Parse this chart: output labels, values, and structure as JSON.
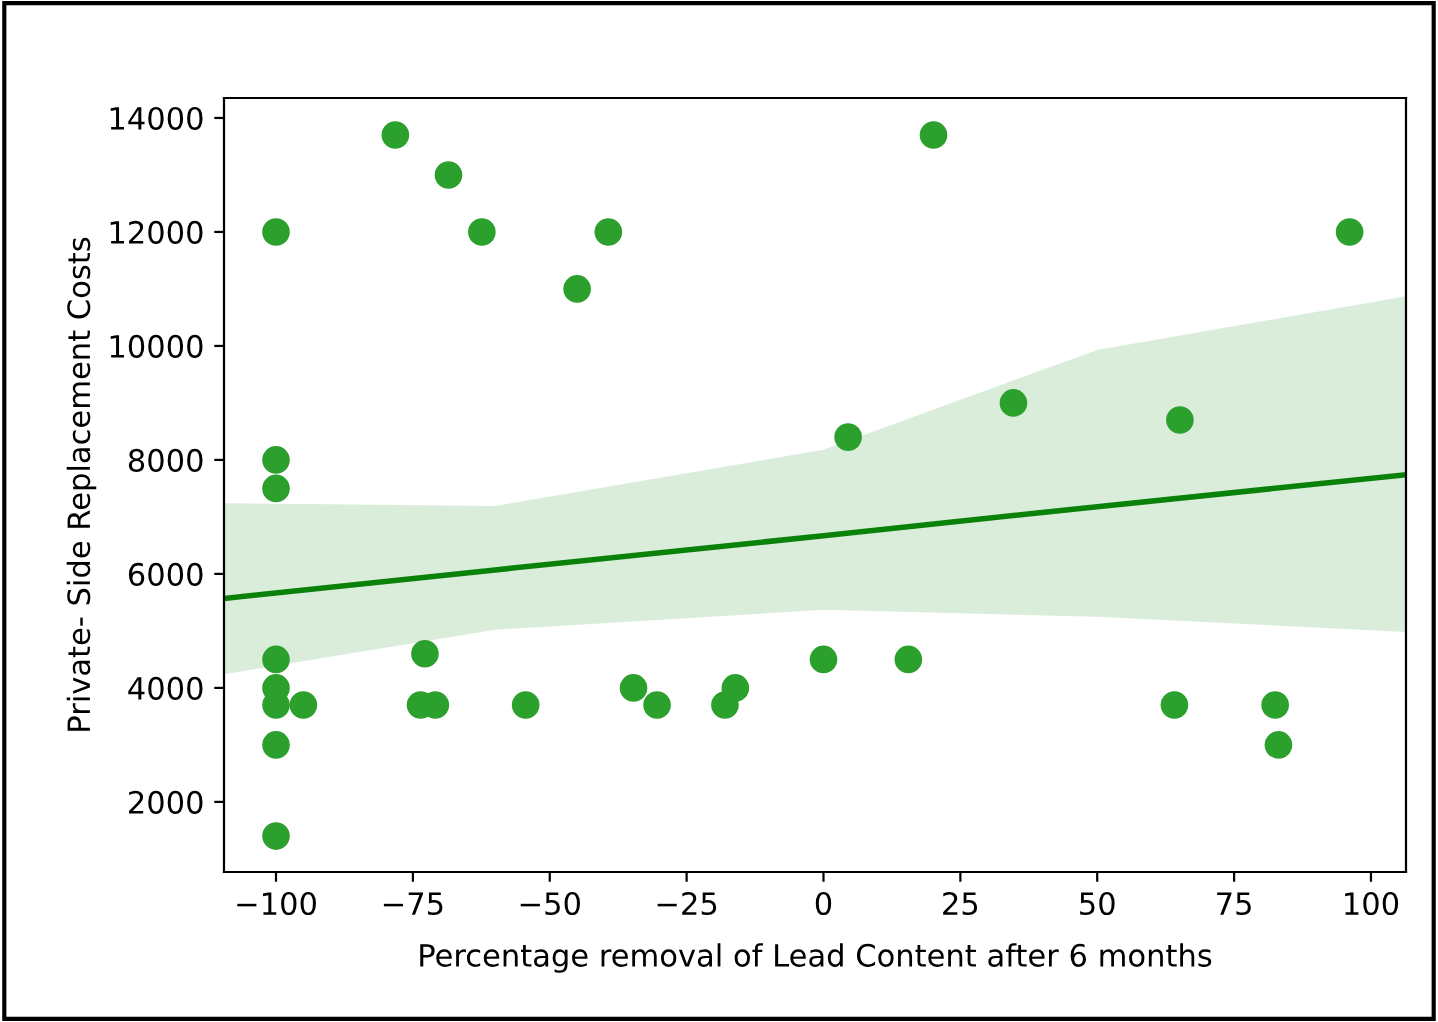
{
  "chart_data": {
    "type": "scatter",
    "xlabel": "Percentage removal of Lead Content after 6 months",
    "ylabel": "Private- Side Replacement Costs",
    "series": [
      {
        "marker": "circle",
        "color": "#2ca02c",
        "x": [
          -100,
          -100,
          -100,
          -100,
          -100,
          -100,
          -100,
          -100,
          -95,
          -78.2,
          -68.5,
          -62.4,
          -39.3,
          -45,
          -72.8,
          -73.6,
          -70.9,
          -54.4,
          -34.7,
          -30.4,
          -18,
          -16.1,
          0,
          4.5,
          15.5,
          20.1,
          34.7,
          65.1,
          64.1,
          82.5,
          83.1,
          96.1
        ],
        "values": [
          12000,
          8000,
          7500,
          4500,
          4000,
          3700,
          3000,
          1400,
          3700,
          13700,
          13000,
          12000,
          12000,
          11000,
          4600,
          3700,
          3700,
          3700,
          4000,
          3700,
          3700,
          4000,
          4500,
          8400,
          4500,
          13700,
          9000,
          8700,
          3700,
          3700,
          3000,
          12000
        ]
      },
      {
        "type": "line",
        "color": "#0a820a",
        "x": [
          -109.5,
          -60,
          0,
          50,
          106.4
        ],
        "values": [
          5570,
          6070,
          6670,
          7180,
          7740
        ],
        "lower": [
          4240,
          5020,
          5370,
          5250,
          4980
        ],
        "upper": [
          7240,
          7190,
          8180,
          9930,
          10870
        ]
      }
    ],
    "xlim": [
      -109.5,
      106.4
    ],
    "ylim": [
      770,
      14350
    ],
    "xticks": [
      {
        "value": -100,
        "label": "−100"
      },
      {
        "value": -75,
        "label": "−75"
      },
      {
        "value": -50,
        "label": "−50"
      },
      {
        "value": -25,
        "label": "−25"
      },
      0,
      25,
      50,
      75,
      100
    ],
    "yticks": [
      2000,
      4000,
      6000,
      8000,
      10000,
      12000,
      14000
    ],
    "grid": false,
    "legend": false
  }
}
